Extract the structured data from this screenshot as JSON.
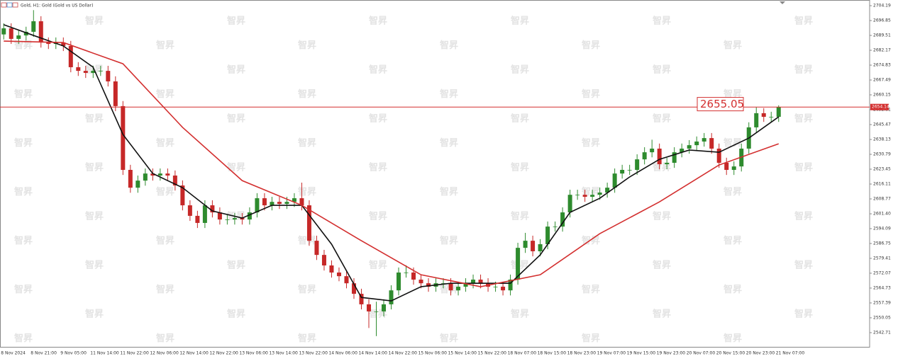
{
  "chart_data": {
    "type": "candlestick",
    "title": "Gold, H1: Gold (Gold vs US Dollar)",
    "watermark": "智昇",
    "up_color": "#2e8b2e",
    "down_color": "#c62828",
    "grid": false,
    "categories": [
      "8 Nov 2024",
      null,
      null,
      null,
      "8 Nov 21:00",
      null,
      null,
      null,
      "9 Nov 05:00",
      null,
      null,
      null,
      "11 Nov 14:00",
      null,
      null,
      null,
      "11 Nov 22:00",
      null,
      null,
      null,
      "12 Nov 06:00",
      null,
      null,
      null,
      "12 Nov 14:00",
      null,
      null,
      null,
      "12 Nov 22:00",
      null,
      null,
      null,
      "13 Nov 06:00",
      null,
      null,
      null,
      "13 Nov 14:00",
      null,
      null,
      null,
      "13 Nov 22:00",
      null,
      null,
      null,
      "14 Nov 06:00",
      null,
      null,
      null,
      "14 Nov 14:00",
      null,
      null,
      null,
      "14 Nov 22:00",
      null,
      null,
      null,
      "15 Nov 06:00",
      null,
      null,
      null,
      "15 Nov 14:00",
      null,
      null,
      null,
      "15 Nov 22:00",
      null,
      null,
      null,
      "18 Nov 07:00",
      null,
      null,
      null,
      "18 Nov 15:00",
      null,
      null,
      null,
      "18 Nov 23:00",
      null,
      null,
      null,
      "19 Nov 07:00",
      null,
      null,
      null,
      "19 Nov 15:00",
      null,
      null,
      null,
      "19 Nov 23:00",
      null,
      null,
      null,
      "20 Nov 07:00",
      null,
      null,
      null,
      "20 Nov 15:00",
      null,
      null,
      null,
      "20 Nov 23:00",
      null,
      null,
      null,
      "21 Nov 07:00"
    ],
    "open": [
      2690.0,
      2693.0,
      2687.8,
      2689.5,
      2691.3,
      2696.5,
      2686.0,
      2685.3,
      2686.0,
      2684.3,
      2673.8,
      2672.0,
      2671.0,
      2672.0,
      2672.0,
      2666.8,
      2654.6,
      2623.1,
      2614.3,
      2617.8,
      2621.3,
      2620.3,
      2621.3,
      2620.3,
      2615.4,
      2605.6,
      2600.4,
      2596.9,
      2605.6,
      2602.1,
      2598.6,
      2598.6,
      2599.3,
      2598.6,
      2602.1,
      2609.1,
      2605.6,
      2607.3,
      2606.3,
      2607.3,
      2609.1,
      2605.6,
      2588.1,
      2581.1,
      2575.9,
      2572.4,
      2570.6,
      2567.1,
      2561.9,
      2556.7,
      2553.2,
      2553.2,
      2556.7,
      2563.6,
      2572.4,
      2572.4,
      2568.9,
      2567.1,
      2565.4,
      2567.1,
      2567.1,
      2563.6,
      2565.4,
      2567.1,
      2568.9,
      2567.1,
      2565.4,
      2565.4,
      2563.6,
      2568.9,
      2584.6,
      2588.1,
      2582.9,
      2586.4,
      2595.1,
      2595.1,
      2602.1,
      2610.8,
      2610.8,
      2609.8,
      2610.8,
      2611.9,
      2614.3,
      2621.3,
      2623.1,
      2623.1,
      2628.3,
      2631.8,
      2633.6,
      2625.9,
      2626.6,
      2631.8,
      2633.6,
      2635.3,
      2637.1,
      2638.8,
      2633.6,
      2626.6,
      2623.1,
      2624.8,
      2633.6,
      2644.1,
      2651.1,
      2649.3,
      2649.3
    ],
    "high": [
      2695.5,
      2695.5,
      2692.0,
      2693.8,
      2702.0,
      2699.0,
      2688.5,
      2688.5,
      2688.5,
      2686.8,
      2676.3,
      2674.5,
      2674.5,
      2674.5,
      2674.5,
      2669.3,
      2657.1,
      2625.6,
      2620.3,
      2623.8,
      2623.8,
      2623.8,
      2623.8,
      2622.8,
      2617.9,
      2608.1,
      2602.9,
      2608.1,
      2608.1,
      2604.6,
      2601.1,
      2601.8,
      2601.8,
      2604.6,
      2611.6,
      2611.6,
      2609.8,
      2609.8,
      2609.8,
      2611.6,
      2616.8,
      2608.1,
      2590.6,
      2583.6,
      2578.4,
      2574.9,
      2573.1,
      2569.6,
      2564.4,
      2559.2,
      2558.0,
      2559.2,
      2566.1,
      2574.9,
      2576.0,
      2574.9,
      2571.4,
      2569.6,
      2569.6,
      2569.6,
      2569.6,
      2567.9,
      2569.6,
      2571.4,
      2571.4,
      2569.6,
      2567.9,
      2567.9,
      2571.4,
      2587.1,
      2592.0,
      2590.6,
      2588.9,
      2597.6,
      2597.6,
      2604.6,
      2613.3,
      2613.3,
      2613.3,
      2613.3,
      2614.4,
      2616.8,
      2623.8,
      2625.6,
      2625.6,
      2630.8,
      2634.3,
      2638.0,
      2636.1,
      2629.1,
      2634.3,
      2636.1,
      2637.8,
      2639.6,
      2641.3,
      2641.3,
      2636.1,
      2629.1,
      2627.3,
      2636.1,
      2646.6,
      2654.0,
      2653.6,
      2651.8,
      2655.0
    ],
    "low": [
      2687.5,
      2685.3,
      2685.3,
      2687.0,
      2688.8,
      2683.5,
      2682.8,
      2682.8,
      2681.8,
      2671.3,
      2669.5,
      2668.5,
      2668.5,
      2669.5,
      2664.3,
      2652.1,
      2620.6,
      2611.8,
      2611.8,
      2615.3,
      2617.8,
      2617.8,
      2617.8,
      2612.9,
      2603.1,
      2597.9,
      2594.4,
      2594.4,
      2599.6,
      2596.1,
      2596.1,
      2596.1,
      2596.1,
      2596.1,
      2599.6,
      2603.1,
      2603.1,
      2603.8,
      2603.8,
      2604.8,
      2603.1,
      2585.6,
      2578.6,
      2573.4,
      2569.9,
      2568.1,
      2564.6,
      2559.4,
      2554.2,
      2545.0,
      2541.0,
      2550.7,
      2554.2,
      2561.1,
      2569.9,
      2566.4,
      2564.6,
      2562.9,
      2562.9,
      2564.6,
      2561.1,
      2561.1,
      2562.9,
      2564.6,
      2564.6,
      2562.9,
      2562.9,
      2561.1,
      2561.1,
      2566.4,
      2582.1,
      2580.4,
      2580.4,
      2583.9,
      2592.6,
      2592.6,
      2599.6,
      2608.3,
      2607.3,
      2607.3,
      2608.3,
      2609.4,
      2611.8,
      2618.8,
      2620.6,
      2620.6,
      2625.8,
      2629.3,
      2623.4,
      2623.4,
      2624.1,
      2629.3,
      2631.1,
      2632.8,
      2634.6,
      2631.1,
      2624.1,
      2620.6,
      2620.6,
      2622.3,
      2631.1,
      2641.6,
      2646.8,
      2646.8,
      2646.8
    ],
    "close": [
      2693.0,
      2687.8,
      2689.5,
      2691.3,
      2696.5,
      2686.0,
      2685.3,
      2686.0,
      2684.3,
      2673.8,
      2672.0,
      2671.0,
      2672.0,
      2672.0,
      2666.8,
      2654.6,
      2623.1,
      2614.3,
      2617.8,
      2621.3,
      2620.3,
      2621.3,
      2620.3,
      2615.4,
      2605.6,
      2600.4,
      2596.9,
      2605.6,
      2602.1,
      2598.6,
      2598.6,
      2599.3,
      2598.6,
      2602.1,
      2609.1,
      2605.6,
      2607.3,
      2606.3,
      2607.3,
      2609.1,
      2605.6,
      2588.1,
      2581.1,
      2575.9,
      2572.4,
      2570.6,
      2567.1,
      2561.9,
      2556.7,
      2553.2,
      2553.2,
      2556.7,
      2563.6,
      2572.4,
      2572.4,
      2568.9,
      2567.1,
      2565.4,
      2567.1,
      2567.1,
      2563.6,
      2565.4,
      2567.1,
      2568.9,
      2567.1,
      2565.4,
      2565.4,
      2563.6,
      2568.9,
      2584.6,
      2588.1,
      2582.9,
      2586.4,
      2595.1,
      2595.1,
      2602.1,
      2610.8,
      2610.8,
      2609.8,
      2610.8,
      2611.9,
      2614.3,
      2621.3,
      2623.1,
      2623.1,
      2628.3,
      2631.8,
      2633.6,
      2625.9,
      2626.6,
      2631.8,
      2633.6,
      2635.3,
      2637.1,
      2638.8,
      2633.6,
      2626.6,
      2623.1,
      2624.8,
      2633.6,
      2644.1,
      2651.1,
      2649.3,
      2649.3,
      2654.1
    ],
    "moving_averages": [
      {
        "color": "#111111",
        "x": [
          0,
          4,
          8,
          12,
          16,
          20,
          24,
          28,
          32,
          36,
          40,
          44,
          48,
          52,
          56,
          60,
          64,
          68,
          72,
          76,
          80,
          84,
          88,
          92,
          96,
          100,
          104
        ],
        "values": [
          2694.8,
          2689.5,
          2684.3,
          2673.8,
          2640.6,
          2621.3,
          2614.3,
          2602.8,
          2599.3,
          2605.6,
          2605.6,
          2586.4,
          2560.1,
          2558.4,
          2565.4,
          2567.1,
          2567.1,
          2567.1,
          2581.1,
          2602.1,
          2609.1,
          2619.6,
          2628.3,
          2632.9,
          2631.8,
          2638.8,
          2649.3
        ]
      },
      {
        "color": "#d32f2f",
        "x": [
          0,
          8,
          16,
          24,
          32,
          40,
          48,
          56,
          64,
          72,
          80,
          88,
          96,
          104
        ],
        "values": [
          2686.7,
          2686.0,
          2675.5,
          2644.1,
          2617.8,
          2605.6,
          2588.1,
          2571.3,
          2565.4,
          2571.3,
          2591.6,
          2607.3,
          2625.5,
          2636.0
        ]
      }
    ],
    "current_price": 2654.14,
    "price_annotation": 2655.05,
    "ylim": [
      2535.7,
      2707.0
    ],
    "yticks": [
      2704.19,
      2696.85,
      2689.51,
      2682.17,
      2674.83,
      2667.49,
      2660.15,
      2652.81,
      2645.47,
      2638.13,
      2630.79,
      2623.45,
      2616.11,
      2608.77,
      {
        "value": 2601.4,
        "label": "2601.40"
      },
      2594.09,
      2586.75,
      2579.41,
      2572.07,
      2564.73,
      2557.39,
      2550.05,
      2542.71
    ]
  }
}
